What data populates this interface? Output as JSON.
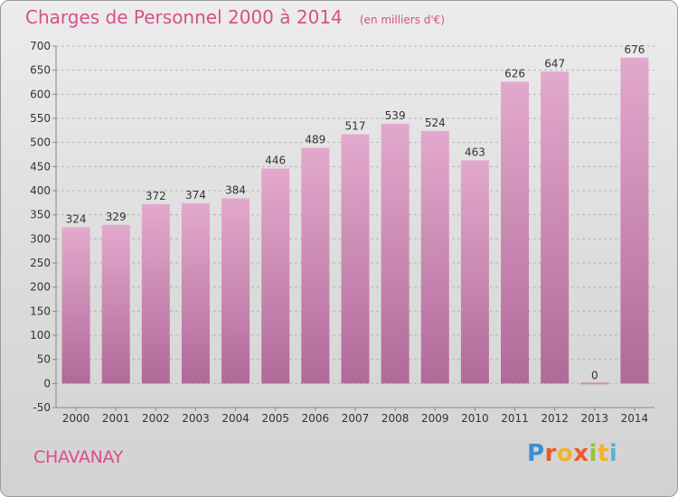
{
  "header": {
    "title": "Charges de Personnel 2000 à 2014",
    "subtitle": "(en milliers d'€)"
  },
  "footer": {
    "place": "CHAVANAY",
    "brand_letters": [
      "P",
      "r",
      "o",
      "x",
      "i",
      "t",
      "i"
    ]
  },
  "colors": {
    "title": "#d6508a",
    "bar_top": "#e3a9cd",
    "bar_bottom": "#b06a97",
    "grid": "#b5b5b5"
  },
  "chart_data": {
    "type": "bar",
    "title": "Charges de Personnel 2000 à 2014",
    "subtitle": "(en milliers d'€)",
    "categories": [
      "2000",
      "2001",
      "2002",
      "2003",
      "2004",
      "2005",
      "2006",
      "2007",
      "2008",
      "2009",
      "2010",
      "2011",
      "2012",
      "2013",
      "2014"
    ],
    "values": [
      324,
      329,
      372,
      374,
      384,
      446,
      489,
      517,
      539,
      524,
      463,
      626,
      647,
      0,
      676
    ],
    "ylim": [
      -50,
      700
    ],
    "yticks": [
      -50,
      0,
      50,
      100,
      150,
      200,
      250,
      300,
      350,
      400,
      450,
      500,
      550,
      600,
      650,
      700
    ],
    "grid": "dashed horizontal",
    "legend": "none"
  }
}
